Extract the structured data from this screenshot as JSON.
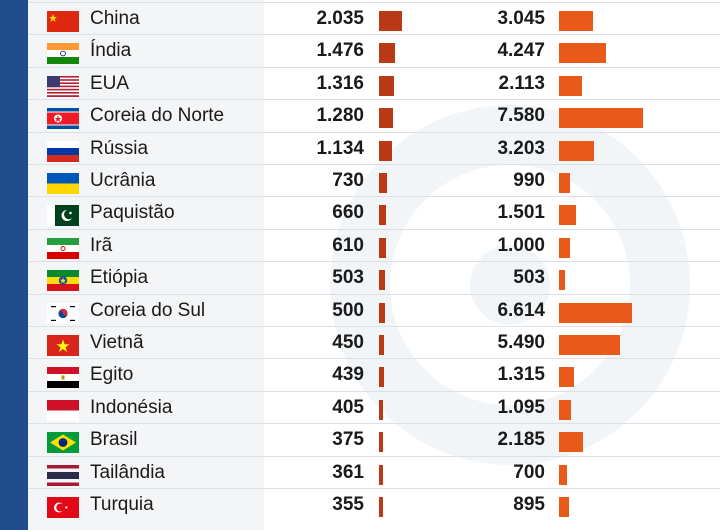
{
  "chart_data": {
    "type": "table",
    "columns": [
      {
        "values_field": "a",
        "color": "#b93a14"
      },
      {
        "values_field": "b",
        "color": "#e8591a"
      }
    ],
    "rows": [
      {
        "country": "China",
        "flag": "cn-flag",
        "a": 2035,
        "a_label": "2.035",
        "b": 3045,
        "b_label": "3.045"
      },
      {
        "country": "Índia",
        "flag": "in-flag",
        "a": 1476,
        "a_label": "1.476",
        "b": 4247,
        "b_label": "4.247"
      },
      {
        "country": "EUA",
        "flag": "us-flag",
        "a": 1316,
        "a_label": "1.316",
        "b": 2113,
        "b_label": "2.113"
      },
      {
        "country": "Coreia do Norte",
        "flag": "kp-flag",
        "a": 1280,
        "a_label": "1.280",
        "b": 7580,
        "b_label": "7.580"
      },
      {
        "country": "Rússia",
        "flag": "ru-flag",
        "a": 1134,
        "a_label": "1.134",
        "b": 3203,
        "b_label": "3.203"
      },
      {
        "country": "Ucrânia",
        "flag": "ua-flag",
        "a": 730,
        "a_label": "730",
        "b": 990,
        "b_label": "990"
      },
      {
        "country": "Paquistão",
        "flag": "pk-flag",
        "a": 660,
        "a_label": "660",
        "b": 1501,
        "b_label": "1.501"
      },
      {
        "country": "Irã",
        "flag": "ir-flag",
        "a": 610,
        "a_label": "610",
        "b": 1000,
        "b_label": "1.000"
      },
      {
        "country": "Etiópia",
        "flag": "et-flag",
        "a": 503,
        "a_label": "503",
        "b": 503,
        "b_label": "503"
      },
      {
        "country": "Coreia do Sul",
        "flag": "kr-flag",
        "a": 500,
        "a_label": "500",
        "b": 6614,
        "b_label": "6.614"
      },
      {
        "country": "Vietnã",
        "flag": "vn-flag",
        "a": 450,
        "a_label": "450",
        "b": 5490,
        "b_label": "5.490"
      },
      {
        "country": "Egito",
        "flag": "eg-flag",
        "a": 439,
        "a_label": "439",
        "b": 1315,
        "b_label": "1.315"
      },
      {
        "country": "Indonésia",
        "flag": "id-flag",
        "a": 405,
        "a_label": "405",
        "b": 1095,
        "b_label": "1.095"
      },
      {
        "country": "Brasil",
        "flag": "br-flag",
        "a": 375,
        "a_label": "375",
        "b": 2185,
        "b_label": "2.185"
      },
      {
        "country": "Tailândia",
        "flag": "th-flag",
        "a": 361,
        "a_label": "361",
        "b": 700,
        "b_label": "700"
      },
      {
        "country": "Turquia",
        "flag": "tr-flag",
        "a": 355,
        "a_label": "355",
        "b": 895,
        "b_label": "895"
      }
    ]
  }
}
